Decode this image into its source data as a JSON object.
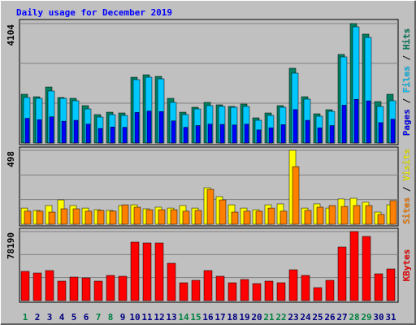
{
  "chart_data": [
    {
      "type": "bar",
      "title": "Daily usage for December 2019",
      "legend": "right",
      "ylim": [
        0,
        4104
      ],
      "yticks": [
        4104
      ],
      "series": [
        {
          "name": "Hits",
          "color": "#008060",
          "values": [
            1675,
            1590,
            1925,
            1563,
            1535,
            1284,
            977,
            1060,
            1033,
            2260,
            2345,
            2289,
            1535,
            1060,
            1228,
            1396,
            1312,
            1256,
            1340,
            865,
            1033,
            1284,
            2568,
            1591,
            1005,
            1144,
            3043,
            4104,
            3741,
            1424,
            1675
          ]
        },
        {
          "name": "Files",
          "color": "#00c8ff",
          "values": [
            1563,
            1535,
            1787,
            1535,
            1452,
            1172,
            893,
            977,
            949,
            2177,
            2261,
            2205,
            1396,
            977,
            1172,
            1284,
            1256,
            1228,
            1256,
            781,
            949,
            1228,
            2401,
            1507,
            921,
            1088,
            2959,
            3992,
            3629,
            1256,
            1452
          ]
        },
        {
          "name": "Pages",
          "color": "#0000ff",
          "values": [
            850,
            800,
            900,
            750,
            780,
            650,
            500,
            550,
            540,
            1050,
            1100,
            1080,
            760,
            540,
            600,
            650,
            640,
            620,
            650,
            450,
            520,
            630,
            1150,
            780,
            520,
            600,
            1300,
            1500,
            1450,
            700,
            820
          ]
        }
      ]
    },
    {
      "type": "bar",
      "legend": "right",
      "ylim": [
        0,
        498
      ],
      "yticks": [
        498
      ],
      "series": [
        {
          "name": "Visits",
          "color": "#ffff00",
          "values": [
            109,
            93,
            126,
            164,
            126,
            109,
            98,
            93,
            126,
            131,
            104,
            115,
            109,
            126,
            109,
            246,
            186,
            131,
            109,
            98,
            131,
            137,
            498,
            109,
            137,
            109,
            170,
            175,
            148,
            82,
            131
          ]
        },
        {
          "name": "Sites",
          "color": "#ff8000",
          "values": [
            88,
            88,
            82,
            104,
            104,
            88,
            93,
            88,
            131,
            115,
            98,
            98,
            98,
            88,
            93,
            235,
            164,
            82,
            88,
            88,
            109,
            88,
            388,
            93,
            115,
            126,
            120,
            126,
            126,
            66,
            159
          ]
        }
      ]
    },
    {
      "type": "bar",
      "legend": "right",
      "ylim": [
        0,
        78190
      ],
      "yticks": [
        78190
      ],
      "categories": [
        "1",
        "2",
        "3",
        "4",
        "5",
        "6",
        "7",
        "8",
        "9",
        "10",
        "11",
        "12",
        "13",
        "14",
        "15",
        "16",
        "17",
        "18",
        "19",
        "20",
        "21",
        "22",
        "23",
        "24",
        "25",
        "26",
        "27",
        "28",
        "29",
        "30",
        "31"
      ],
      "category_colors": [
        "#008040",
        "#000080",
        "#000080",
        "#000080",
        "#000080",
        "#000080",
        "#008040",
        "#008040",
        "#000080",
        "#000080",
        "#000080",
        "#000080",
        "#000080",
        "#008040",
        "#008040",
        "#000080",
        "#000080",
        "#000080",
        "#000080",
        "#000080",
        "#008040",
        "#008040",
        "#000080",
        "#000080",
        "#000080",
        "#000080",
        "#000080",
        "#008040",
        "#008040",
        "#000080",
        "#000080"
      ],
      "series": [
        {
          "name": "KBytes",
          "color": "#ff0000",
          "values": [
            33120,
            31280,
            34040,
            22080,
            26680,
            25760,
            22080,
            28520,
            27600,
            66240,
            65320,
            65320,
            42320,
            20240,
            23000,
            34040,
            27600,
            20240,
            23920,
            19320,
            22080,
            20240,
            34960,
            28520,
            14720,
            23000,
            60720,
            78190,
            72680,
            30360,
            35880
          ]
        }
      ]
    }
  ]
}
